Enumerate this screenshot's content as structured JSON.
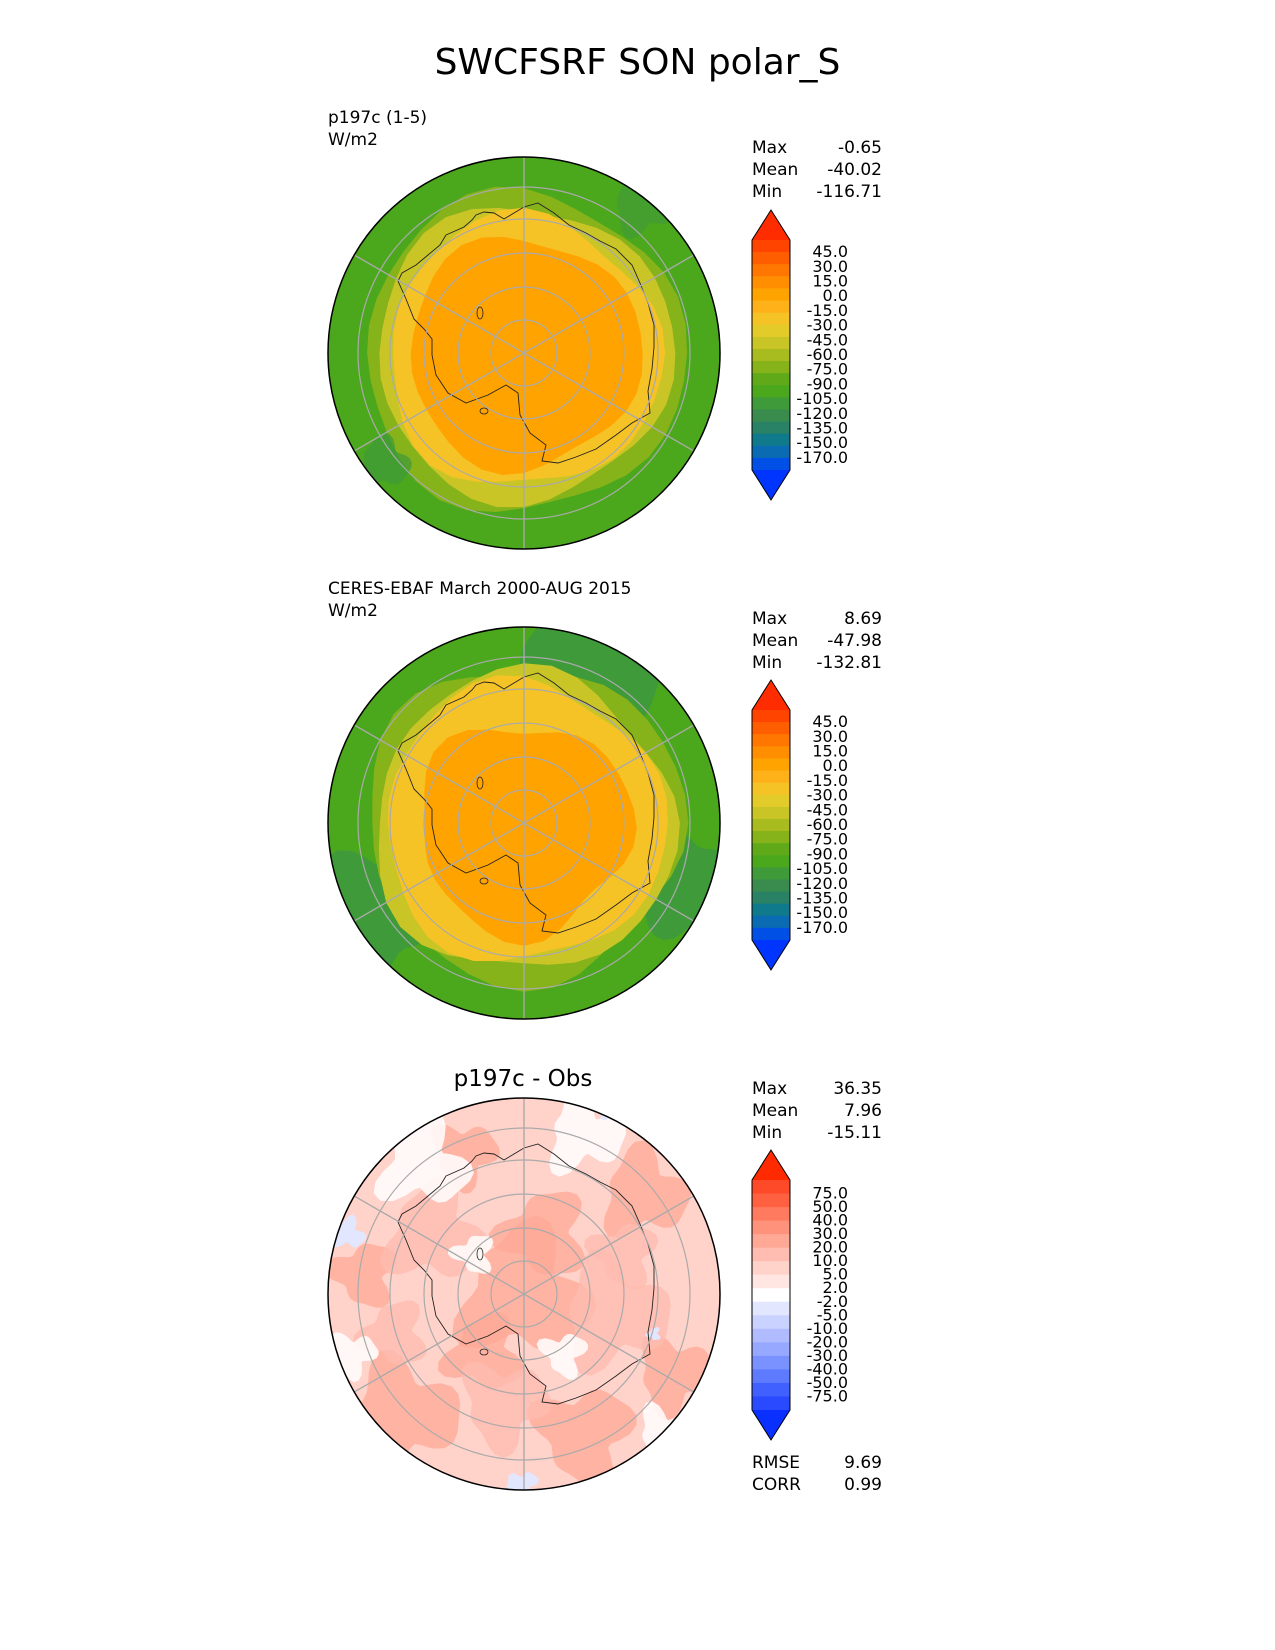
{
  "figure_title": "SWCFSRF SON polar_S",
  "chart_data": [
    {
      "type": "heatmap",
      "projection": "south polar stereographic",
      "label_line1": "p197c (1-5)",
      "label_line2": "W/m2",
      "stats": [
        {
          "label": "Max",
          "value": "-0.65"
        },
        {
          "label": "Mean",
          "value": "-40.02"
        },
        {
          "label": "Min",
          "value": "-116.71"
        }
      ],
      "colorbar": {
        "ticks": [
          "45.0",
          "30.0",
          "15.0",
          "0.0",
          "-15.0",
          "-30.0",
          "-45.0",
          "-60.0",
          "-75.0",
          "-90.0",
          "-105.0",
          "-120.0",
          "-135.0",
          "-150.0",
          "-170.0"
        ],
        "colors": [
          "#ff2c00",
          "#ff4400",
          "#ff5e00",
          "#ff7700",
          "#ff8f00",
          "#ffa300",
          "#ffb11a",
          "#f5c326",
          "#e3cc2a",
          "#c9c527",
          "#a8bc1f",
          "#86b21a",
          "#60aa1a",
          "#4ba81d",
          "#3f9a3a",
          "#3a8c4e",
          "#2a8266",
          "#0f7a8c",
          "#0a6bb3",
          "#0050e6",
          "#0034ff"
        ]
      }
    },
    {
      "type": "heatmap",
      "projection": "south polar stereographic",
      "label_line1": "CERES-EBAF March 2000-AUG 2015",
      "label_line2": "W/m2",
      "stats": [
        {
          "label": "Max",
          "value": "8.69"
        },
        {
          "label": "Mean",
          "value": "-47.98"
        },
        {
          "label": "Min",
          "value": "-132.81"
        }
      ],
      "colorbar": {
        "ticks": [
          "45.0",
          "30.0",
          "15.0",
          "0.0",
          "-15.0",
          "-30.0",
          "-45.0",
          "-60.0",
          "-75.0",
          "-90.0",
          "-105.0",
          "-120.0",
          "-135.0",
          "-150.0",
          "-170.0"
        ],
        "colors": [
          "#ff2c00",
          "#ff4400",
          "#ff5e00",
          "#ff7700",
          "#ff8f00",
          "#ffa300",
          "#ffb11a",
          "#f5c326",
          "#e3cc2a",
          "#c9c527",
          "#a8bc1f",
          "#86b21a",
          "#60aa1a",
          "#4ba81d",
          "#3f9a3a",
          "#3a8c4e",
          "#2a8266",
          "#0f7a8c",
          "#0a6bb3",
          "#0050e6",
          "#0034ff"
        ]
      }
    },
    {
      "type": "heatmap",
      "projection": "south polar stereographic",
      "title": "p197c - Obs",
      "stats": [
        {
          "label": "Max",
          "value": "36.35"
        },
        {
          "label": "Mean",
          "value": "7.96"
        },
        {
          "label": "Min",
          "value": "-15.11"
        }
      ],
      "extra_stats": [
        {
          "label": "RMSE",
          "value": "9.69"
        },
        {
          "label": "CORR",
          "value": "0.99"
        }
      ],
      "colorbar": {
        "ticks": [
          "75.0",
          "50.0",
          "40.0",
          "30.0",
          "20.0",
          "10.0",
          "5.0",
          "2.0",
          "-2.0",
          "-5.0",
          "-10.0",
          "-20.0",
          "-30.0",
          "-40.0",
          "-50.0",
          "-75.0"
        ],
        "colors": [
          "#ff2a00",
          "#ff4a2a",
          "#ff6040",
          "#ff7a5e",
          "#ff927a",
          "#ffa896",
          "#ffbcb0",
          "#ffd2ca",
          "#ffe6e2",
          "#ffffff",
          "#e2e6ff",
          "#cad2ff",
          "#b0bcff",
          "#96a8ff",
          "#7a92ff",
          "#5e7aff",
          "#4060ff",
          "#2a4aff",
          "#0a30ff"
        ]
      }
    }
  ],
  "palette": {
    "field1": {
      "outer": "#4ba81d",
      "band1": "#86b21a",
      "band2": "#c9c527",
      "band3": "#f5c326",
      "inner": "#ffa300",
      "patch": "#3f9a3a"
    },
    "field2": {
      "outer": "#4ba81d",
      "outer2": "#3f9a3a",
      "band1": "#86b21a",
      "band2": "#c9c527",
      "band3": "#f5c326",
      "inner": "#ffa300"
    },
    "field3": {
      "base": "#ffd2ca",
      "mid": "#ffbcb0",
      "warm": "#ffa896",
      "white": "#ffffff",
      "blue": "#e2e6ff"
    }
  }
}
